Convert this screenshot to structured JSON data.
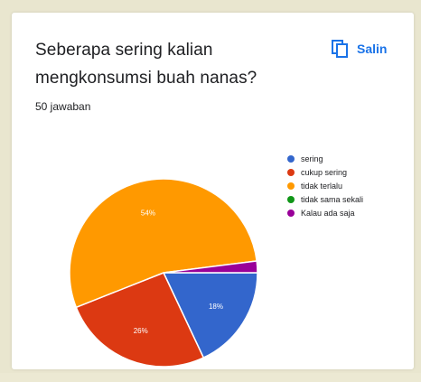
{
  "question": {
    "line1": "Seberapa sering kalian",
    "line2": "mengkonsumsi buah nanas?"
  },
  "response_count": "50 jawaban",
  "copy_button": {
    "label": "Salin",
    "icon": "copy-icon"
  },
  "chart_data": {
    "type": "pie",
    "categories": [
      "sering",
      "cukup sering",
      "tidak terlalu",
      "tidak sama sekali",
      "Kalau ada saja"
    ],
    "values": [
      18,
      26,
      54,
      0,
      2
    ],
    "value_labels": [
      "18%",
      "26%",
      "54%",
      "",
      ""
    ],
    "colors": [
      "#3366cc",
      "#dc3912",
      "#ff9900",
      "#109618",
      "#990099"
    ],
    "legend_position": "right"
  }
}
